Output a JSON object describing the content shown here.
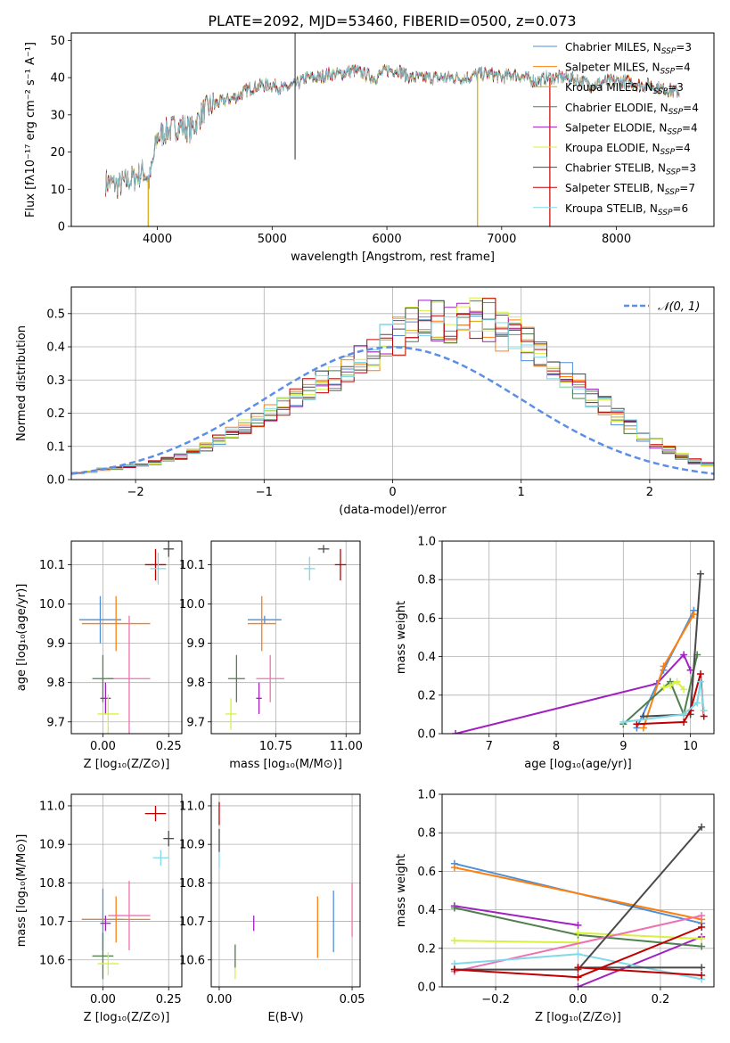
{
  "title": "PLATE=2092, MJD=53460, FIBERID=0500, z=0.073",
  "colors": {
    "chabrier_miles": "#4e8fd6",
    "salpeter_miles": "#ff7f0e",
    "kroupa_miles": "#d9a400",
    "chabrier_elodie": "#4f7f4f",
    "salpeter_elodie": "#a020c0",
    "kroupa_elodie": "#d8f040",
    "chabrier_stelib": "#4a4a4a",
    "salpeter_stelib": "#c00000",
    "kroupa_stelib": "#80d8e8",
    "normal_curve": "#5b8ee6",
    "pink": "#f070b0"
  },
  "chart_data": [
    {
      "id": "spectrum",
      "type": "line",
      "xlabel": "wavelength [Angstrom, rest frame]",
      "ylabel": "Flux [fλ10⁻¹⁷ erg cm⁻² s⁻¹ A⁻¹]",
      "xlim": [
        3250,
        8850
      ],
      "ylim": [
        0,
        52
      ],
      "xticks": [
        4000,
        5000,
        6000,
        7000,
        8000
      ],
      "yticks": [
        0,
        10,
        20,
        30,
        40,
        50
      ],
      "grid": false,
      "legend_position": "top-right",
      "legend": [
        "Chabrier MILES, N_SSP=3",
        "Salpeter MILES, N_SSP=4",
        "Kroupa MILES, N_SSP=3",
        "Chabrier ELODIE, N_SSP=4",
        "Salpeter ELODIE, N_SSP=4",
        "Kroupa ELODIE, N_SSP=4",
        "Chabrier STELIB, N_SSP=3",
        "Salpeter STELIB, N_SSP=7",
        "Kroupa STELIB, N_SSP=6"
      ],
      "spectrum_envelope": {
        "x": [
          3550,
          3650,
          3800,
          3880,
          3930,
          4000,
          4100,
          4200,
          4300,
          4400,
          4500,
          4600,
          4700,
          4800,
          4900,
          5000,
          5100,
          5200,
          5300,
          5400,
          5500,
          5600,
          5700,
          5800,
          5900,
          6000,
          6100,
          6200,
          6300,
          6400,
          6500,
          6600,
          6700,
          6800,
          6900,
          7000,
          7100,
          7200,
          7300,
          7400,
          7500,
          7600,
          7700,
          7800,
          7900,
          8000,
          8100,
          8200,
          8300,
          8400,
          8550
        ],
        "y": [
          12,
          11,
          13,
          15,
          12,
          24,
          26,
          27,
          26,
          31,
          33,
          34,
          35,
          37,
          38,
          38,
          37,
          38,
          40,
          40,
          41,
          41,
          42,
          41,
          40,
          42,
          42,
          40,
          40,
          40,
          40,
          40,
          40,
          41,
          41,
          40,
          41,
          40,
          39,
          40,
          40,
          40,
          39,
          38,
          39,
          39,
          39,
          38,
          38,
          37,
          36
        ]
      },
      "spikes": [
        {
          "x": 3920,
          "ymin": 0,
          "color": "kroupa_miles"
        },
        {
          "x": 5200,
          "ymin": 18,
          "ymax": 52,
          "color": "chabrier_stelib"
        },
        {
          "x": 6790,
          "ymin": 0,
          "color": "kroupa_miles"
        },
        {
          "x": 7420,
          "ymin": 0,
          "color": "salpeter_stelib"
        }
      ]
    },
    {
      "id": "residual_hist",
      "type": "histogram",
      "xlabel": "(data-model)/error",
      "ylabel": "Normed distribution",
      "xlim": [
        -2.5,
        2.5
      ],
      "ylim": [
        0,
        0.58
      ],
      "xticks": [
        -2,
        -1,
        0,
        1,
        2
      ],
      "yticks": [
        0.0,
        0.1,
        0.2,
        0.3,
        0.4,
        0.5
      ],
      "grid": true,
      "legend_position": "top-right",
      "normal_label": "𝒩(0, 1)",
      "bin_width": 0.1,
      "bin_start": -2.5,
      "reference_counts": [
        0.02,
        0.025,
        0.03,
        0.035,
        0.04,
        0.045,
        0.05,
        0.06,
        0.07,
        0.085,
        0.1,
        0.12,
        0.14,
        0.16,
        0.18,
        0.2,
        0.22,
        0.24,
        0.27,
        0.29,
        0.31,
        0.34,
        0.36,
        0.38,
        0.41,
        0.43,
        0.47,
        0.49,
        0.48,
        0.46,
        0.47,
        0.49,
        0.48,
        0.45,
        0.43,
        0.41,
        0.37,
        0.34,
        0.31,
        0.28,
        0.25,
        0.22,
        0.19,
        0.16,
        0.13,
        0.11,
        0.09,
        0.07,
        0.055,
        0.045,
        0.035,
        0.03,
        0.025,
        0.02,
        0.018,
        0.015,
        0.012,
        0.01,
        0.008,
        0.006
      ]
    },
    {
      "id": "age_vs_Z",
      "type": "scatter",
      "xlabel": "Z [log₁₀(Z/Z⊙)]",
      "ylabel": "age  [log₁₀(age/yr)]",
      "xlim": [
        -0.12,
        0.3
      ],
      "ylim": [
        9.67,
        10.16
      ],
      "xticks": [
        0.0,
        0.25
      ],
      "xticklabels": [
        "0.00",
        "0.25"
      ],
      "yticks": [
        9.7,
        9.8,
        9.9,
        10.0,
        10.1
      ],
      "grid": true,
      "points": [
        {
          "s": "chabrier_miles",
          "x": -0.01,
          "y": 9.96,
          "dx": 0.08,
          "dy": 0.06
        },
        {
          "s": "salpeter_miles",
          "x": 0.05,
          "y": 9.95,
          "dx": 0.13,
          "dy": 0.07
        },
        {
          "s": "pink",
          "x": 0.1,
          "y": 9.81,
          "dx": 0.08,
          "dy": 0.16
        },
        {
          "s": "chabrier_elodie",
          "x": 0.0,
          "y": 9.81,
          "dx": 0.04,
          "dy": 0.06
        },
        {
          "s": "salpeter_elodie",
          "x": 0.01,
          "y": 9.76,
          "dx": 0.02,
          "dy": 0.04
        },
        {
          "s": "kroupa_elodie",
          "x": 0.02,
          "y": 9.72,
          "dx": 0.04,
          "dy": 0.05
        },
        {
          "s": "chabrier_stelib",
          "x": 0.25,
          "y": 10.14,
          "dx": 0.02,
          "dy": 0.02
        },
        {
          "s": "salpeter_stelib",
          "x": 0.2,
          "y": 10.1,
          "dx": 0.04,
          "dy": 0.04
        },
        {
          "s": "kroupa_stelib",
          "x": 0.21,
          "y": 10.09,
          "dx": 0.03,
          "dy": 0.04
        }
      ]
    },
    {
      "id": "age_vs_mass",
      "type": "scatter",
      "xlabel": "mass [log₁₀(M/M⊙)]",
      "xlim": [
        10.52,
        11.05
      ],
      "ylim": [
        9.67,
        10.16
      ],
      "xticks": [
        10.75,
        11.0
      ],
      "xticklabels": [
        "10.75",
        "11.00"
      ],
      "yticks": [
        9.7,
        9.8,
        9.9,
        10.0,
        10.1
      ],
      "grid": true,
      "points": [
        {
          "s": "chabrier_miles",
          "x": 10.71,
          "y": 9.96,
          "dx": 0.06,
          "dy": 0.01
        },
        {
          "s": "salpeter_miles",
          "x": 10.7,
          "y": 9.95,
          "dx": 0.05,
          "dy": 0.07
        },
        {
          "s": "pink",
          "x": 10.73,
          "y": 9.81,
          "dx": 0.05,
          "dy": 0.06
        },
        {
          "s": "chabrier_elodie",
          "x": 10.61,
          "y": 9.81,
          "dx": 0.03,
          "dy": 0.06
        },
        {
          "s": "salpeter_elodie",
          "x": 10.69,
          "y": 9.76,
          "dx": 0.01,
          "dy": 0.04
        },
        {
          "s": "kroupa_elodie",
          "x": 10.59,
          "y": 9.72,
          "dx": 0.02,
          "dy": 0.04
        },
        {
          "s": "chabrier_stelib",
          "x": 10.92,
          "y": 10.14,
          "dx": 0.02,
          "dy": 0.01
        },
        {
          "s": "salpeter_stelib",
          "x": 10.98,
          "y": 10.1,
          "dx": 0.02,
          "dy": 0.04
        },
        {
          "s": "kroupa_stelib",
          "x": 10.87,
          "y": 10.09,
          "dx": 0.02,
          "dy": 0.03
        }
      ]
    },
    {
      "id": "weight_vs_age",
      "type": "line",
      "xlabel": "age  [log₁₀(age/yr)]",
      "ylabel": "mass weight",
      "xlim": [
        6.3,
        10.35
      ],
      "ylim": [
        0,
        1.0
      ],
      "xticks": [
        7,
        8,
        9,
        10
      ],
      "yticks": [
        0.0,
        0.2,
        0.4,
        0.6,
        0.8,
        1.0
      ],
      "grid": true,
      "series": [
        {
          "s": "salpeter_elodie",
          "x": [
            6.5,
            9.5,
            9.9,
            10.0
          ],
          "y": [
            0.0,
            0.26,
            0.41,
            0.33
          ]
        },
        {
          "s": "chabrier_miles",
          "x": [
            9.2,
            9.6,
            10.05
          ],
          "y": [
            0.03,
            0.33,
            0.64
          ]
        },
        {
          "s": "salpeter_miles",
          "x": [
            9.3,
            9.6,
            10.05
          ],
          "y": [
            0.03,
            0.35,
            0.62
          ]
        },
        {
          "s": "chabrier_elodie",
          "x": [
            9.0,
            9.7,
            9.9,
            10.1
          ],
          "y": [
            0.05,
            0.27,
            0.1,
            0.41
          ]
        },
        {
          "s": "kroupa_elodie",
          "x": [
            9.6,
            9.7,
            9.8,
            9.9
          ],
          "y": [
            0.24,
            0.25,
            0.27,
            0.23
          ]
        },
        {
          "s": "chabrier_stelib",
          "x": [
            9.3,
            10.0,
            10.15
          ],
          "y": [
            0.09,
            0.1,
            0.83
          ]
        },
        {
          "s": "salpeter_stelib",
          "x": [
            9.2,
            9.9,
            10.0,
            10.15,
            10.2
          ],
          "y": [
            0.05,
            0.06,
            0.12,
            0.31,
            0.09
          ]
        },
        {
          "s": "kroupa_stelib",
          "x": [
            9.0,
            9.9,
            10.1,
            10.15,
            10.2
          ],
          "y": [
            0.06,
            0.1,
            0.16,
            0.27,
            0.12
          ]
        }
      ]
    },
    {
      "id": "mass_vs_Z",
      "type": "scatter",
      "xlabel": "Z [log₁₀(Z/Z⊙)]",
      "ylabel": "mass [log₁₀(M/M⊙)]",
      "xlim": [
        -0.12,
        0.3
      ],
      "ylim": [
        10.53,
        11.03
      ],
      "xticks": [
        0.0,
        0.25
      ],
      "xticklabels": [
        "0.00",
        "0.25"
      ],
      "yticks": [
        10.6,
        10.7,
        10.8,
        10.9,
        11.0
      ],
      "grid": true,
      "points": [
        {
          "s": "chabrier_miles",
          "x": 0.0,
          "y": 10.705,
          "dx": 0.08,
          "dy": 0.08
        },
        {
          "s": "salpeter_miles",
          "x": 0.05,
          "y": 10.705,
          "dx": 0.13,
          "dy": 0.06
        },
        {
          "s": "pink",
          "x": 0.1,
          "y": 10.715,
          "dx": 0.08,
          "dy": 0.09
        },
        {
          "s": "chabrier_elodie",
          "x": 0.0,
          "y": 10.61,
          "dx": 0.04,
          "dy": 0.06
        },
        {
          "s": "salpeter_elodie",
          "x": 0.01,
          "y": 10.695,
          "dx": 0.02,
          "dy": 0.02
        },
        {
          "s": "kroupa_elodie",
          "x": 0.02,
          "y": 10.59,
          "dx": 0.04,
          "dy": 0.03
        },
        {
          "s": "chabrier_stelib",
          "x": 0.25,
          "y": 10.915,
          "dx": 0.02,
          "dy": 0.02
        },
        {
          "s": "salpeter_stelib",
          "x": 0.2,
          "y": 10.98,
          "dx": 0.04,
          "dy": 0.02
        },
        {
          "s": "kroupa_stelib",
          "x": 0.22,
          "y": 10.865,
          "dx": 0.03,
          "dy": 0.02
        }
      ]
    },
    {
      "id": "mass_vs_ebv",
      "type": "scatter",
      "xlabel": "E(B-V)",
      "xlim": [
        -0.003,
        0.053
      ],
      "ylim": [
        10.53,
        11.03
      ],
      "xticks": [
        0.0,
        0.05
      ],
      "xticklabels": [
        "0.00",
        "0.05"
      ],
      "yticks": [
        10.6,
        10.7,
        10.8,
        10.9,
        11.0
      ],
      "grid": true,
      "points": [
        {
          "s": "salpeter_stelib",
          "x": 0.0,
          "y": 10.98,
          "dx": 0,
          "dy": 0.03
        },
        {
          "s": "chabrier_stelib",
          "x": 0.0,
          "y": 10.91,
          "dx": 0,
          "dy": 0.03
        },
        {
          "s": "kroupa_stelib",
          "x": 0.0,
          "y": 10.86,
          "dx": 0,
          "dy": 0.02
        },
        {
          "s": "kroupa_elodie",
          "x": 0.006,
          "y": 10.59,
          "dx": 0,
          "dy": 0.04
        },
        {
          "s": "chabrier_elodie",
          "x": 0.006,
          "y": 10.61,
          "dx": 0,
          "dy": 0.03
        },
        {
          "s": "salpeter_elodie",
          "x": 0.013,
          "y": 10.695,
          "dx": 0,
          "dy": 0.02
        },
        {
          "s": "salpeter_miles",
          "x": 0.037,
          "y": 10.685,
          "dx": 0,
          "dy": 0.08
        },
        {
          "s": "chabrier_miles",
          "x": 0.043,
          "y": 10.7,
          "dx": 0,
          "dy": 0.08
        },
        {
          "s": "pink",
          "x": 0.05,
          "y": 10.73,
          "dx": 0,
          "dy": 0.07
        }
      ]
    },
    {
      "id": "weight_vs_Z",
      "type": "line",
      "xlabel": "Z [log₁₀(Z/Z⊙)]",
      "ylabel": "mass weight",
      "xlim": [
        -0.33,
        0.33
      ],
      "ylim": [
        0,
        1.0
      ],
      "xticks": [
        -0.2,
        0.0,
        0.2
      ],
      "xticklabels": [
        "−0.2",
        "0.0",
        "0.2"
      ],
      "yticks": [
        0.0,
        0.2,
        0.4,
        0.6,
        0.8,
        1.0
      ],
      "grid": true,
      "series": [
        {
          "s": "chabrier_miles",
          "x": [
            -0.3,
            0.3
          ],
          "y": [
            0.64,
            0.33
          ]
        },
        {
          "s": "salpeter_miles",
          "x": [
            -0.3,
            0.3
          ],
          "y": [
            0.62,
            0.35
          ]
        },
        {
          "s": "salpeter_elodie",
          "x": [
            -0.3,
            0.0
          ],
          "y": [
            0.42,
            0.32
          ]
        },
        {
          "s": "salpeter_elodie",
          "x": [
            0.0,
            0.3
          ],
          "y": [
            0.0,
            0.26
          ]
        },
        {
          "s": "chabrier_elodie",
          "x": [
            -0.3,
            0.0,
            0.3
          ],
          "y": [
            0.41,
            0.27,
            0.21
          ]
        },
        {
          "s": "kroupa_elodie",
          "x": [
            -0.3,
            0.0
          ],
          "y": [
            0.24,
            0.23
          ]
        },
        {
          "s": "kroupa_elodie",
          "x": [
            0.0,
            0.3
          ],
          "y": [
            0.28,
            0.25
          ]
        },
        {
          "s": "pink",
          "x": [
            -0.3,
            0.3
          ],
          "y": [
            0.08,
            0.37
          ]
        },
        {
          "s": "kroupa_stelib",
          "x": [
            -0.3,
            0.0,
            0.3
          ],
          "y": [
            0.12,
            0.17,
            0.04
          ]
        },
        {
          "s": "chabrier_stelib",
          "x": [
            -0.3,
            0.0,
            0.3
          ],
          "y": [
            0.09,
            0.09,
            0.83
          ]
        },
        {
          "s": "chabrier_stelib",
          "x": [
            0.0,
            0.3
          ],
          "y": [
            0.1,
            0.1
          ]
        },
        {
          "s": "salpeter_stelib",
          "x": [
            -0.3,
            0.0,
            0.3
          ],
          "y": [
            0.09,
            0.05,
            0.31
          ]
        },
        {
          "s": "salpeter_stelib",
          "x": [
            0.0,
            0.3
          ],
          "y": [
            0.1,
            0.06
          ]
        }
      ]
    }
  ]
}
